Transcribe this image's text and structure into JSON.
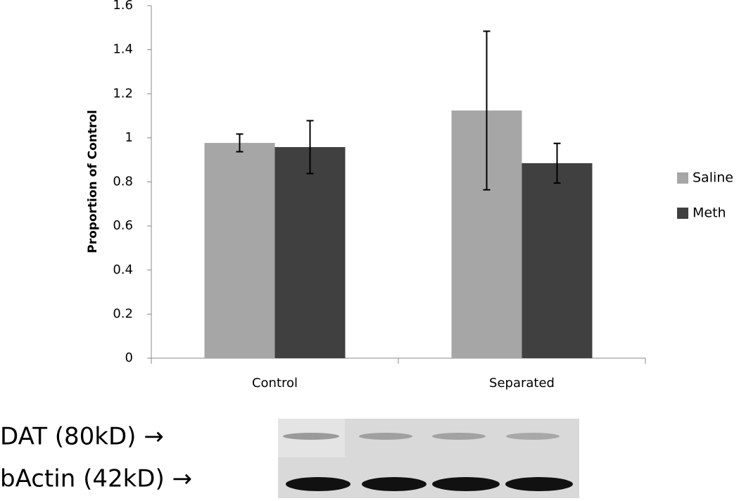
{
  "chart_data": {
    "type": "bar",
    "ylabel": "Proportion of Control",
    "categories": [
      "Control",
      "Separated"
    ],
    "series": [
      {
        "name": "Saline",
        "color": "#a6a6a6",
        "values": [
          0.977,
          1.124
        ],
        "errors": [
          0.04,
          0.36
        ]
      },
      {
        "name": "Meth",
        "color": "#404040",
        "values": [
          0.958,
          0.885
        ],
        "errors": [
          0.12,
          0.09
        ]
      }
    ],
    "ylim": [
      0,
      1.6
    ],
    "yticks": [
      0,
      0.2,
      0.4,
      0.6,
      0.8,
      1,
      1.2,
      1.4,
      1.6
    ],
    "legend": "right"
  },
  "blot": {
    "labels": [
      "DAT (80kD) →",
      "bActin (42kD) →"
    ]
  }
}
